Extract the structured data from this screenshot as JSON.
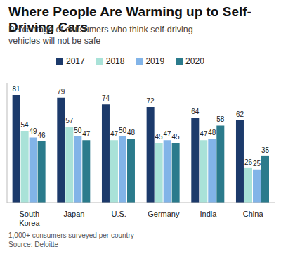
{
  "chart_data": {
    "type": "bar",
    "title": "Where People Are Warming up to Self-Driving Cars",
    "subtitle": "Percentage of consumers who think self-driving vehicles will not be safe",
    "categories": [
      "South Korea",
      "Japan",
      "U.S.",
      "Germany",
      "India",
      "China"
    ],
    "series": [
      {
        "name": "2017",
        "color": "#1c3a6b",
        "values": [
          81,
          79,
          74,
          72,
          64,
          62
        ]
      },
      {
        "name": "2018",
        "color": "#a9e2d8",
        "values": [
          54,
          57,
          47,
          45,
          47,
          26
        ]
      },
      {
        "name": "2019",
        "color": "#82b4e8",
        "values": [
          49,
          50,
          50,
          47,
          48,
          25
        ]
      },
      {
        "name": "2020",
        "color": "#2b7b8c",
        "values": [
          46,
          47,
          48,
          45,
          58,
          35
        ]
      }
    ],
    "ylim": [
      0,
      90
    ],
    "grid": false,
    "legend": "top",
    "data_labels": true,
    "tick_labels": "x",
    "annotations": [
      "1,000+ consumers surveyed per country",
      "Source: Deloitte"
    ]
  }
}
